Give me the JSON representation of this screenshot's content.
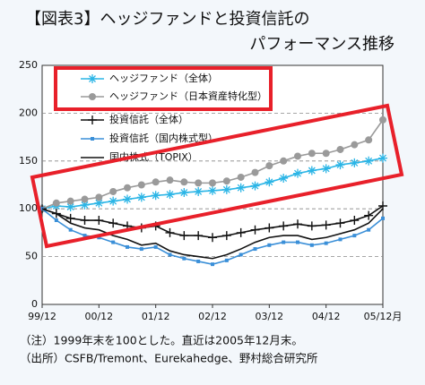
{
  "chart_data": {
    "type": "line",
    "title_lines": [
      "【図表3】ヘッジファンドと投資信託の",
      "パフォーマンス推移"
    ],
    "categories": [
      "99/12",
      null,
      null,
      null,
      "00/12",
      null,
      null,
      null,
      "01/12",
      null,
      null,
      null,
      "02/12",
      null,
      null,
      null,
      "03/12",
      null,
      null,
      null,
      "04/12",
      null,
      null,
      null,
      "05/12月"
    ],
    "series": [
      {
        "name": "ヘッジファンド（全体）",
        "color": "#2bb5e6",
        "marker": "asterisk",
        "values": [
          100,
          103,
          102,
          104,
          106,
          108,
          110,
          112,
          114,
          115,
          117,
          118,
          119,
          120,
          122,
          124,
          128,
          132,
          137,
          140,
          142,
          146,
          148,
          150,
          153
        ]
      },
      {
        "name": "ヘッジファンド（日本資産特化型）",
        "color": "#9a9a9a",
        "marker": "circle",
        "values": [
          100,
          106,
          108,
          110,
          112,
          118,
          122,
          125,
          128,
          130,
          128,
          127,
          127,
          129,
          133,
          138,
          145,
          150,
          155,
          158,
          158,
          162,
          167,
          172,
          193
        ]
      },
      {
        "name": "投資信託（全体）",
        "color": "#111111",
        "marker": "plus",
        "values": [
          100,
          95,
          90,
          88,
          88,
          85,
          82,
          80,
          82,
          75,
          72,
          72,
          70,
          72,
          75,
          78,
          80,
          82,
          84,
          82,
          83,
          85,
          88,
          93,
          103
        ]
      },
      {
        "name": "投資信託（国内株式型）",
        "color": "#3a8fd8",
        "marker": "square",
        "values": [
          100,
          88,
          78,
          72,
          70,
          65,
          60,
          58,
          60,
          52,
          48,
          45,
          42,
          46,
          52,
          58,
          62,
          65,
          65,
          62,
          64,
          68,
          72,
          78,
          90
        ]
      },
      {
        "name": "国内株式（TOPIX）",
        "color": "#111111",
        "marker": "none",
        "values": [
          100,
          95,
          85,
          80,
          78,
          72,
          68,
          62,
          64,
          56,
          52,
          50,
          48,
          52,
          58,
          65,
          70,
          72,
          72,
          68,
          70,
          74,
          78,
          85,
          100
        ]
      }
    ],
    "ylim": [
      0,
      250
    ],
    "yticks": [
      0,
      50,
      100,
      150,
      200,
      250
    ],
    "grid": true,
    "legend": "top-left",
    "notes": [
      "（注）1999年末を100とした。直近は2005年12月末。",
      "（出所）CSFB/Tremont、Eurekahedge、野村総合研究所"
    ]
  }
}
